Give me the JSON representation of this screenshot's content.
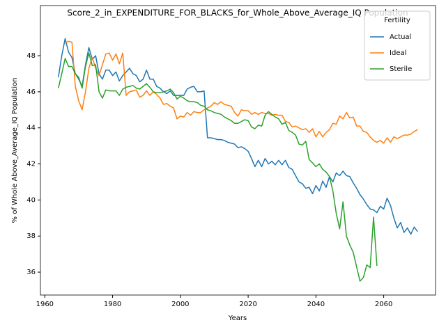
{
  "chart_data": {
    "type": "line",
    "title": "Score_2_in_EXPENDITURE_FOR_BLACKS_for_Whole_Above_Average_IQ Population",
    "xlabel": "Years",
    "ylabel": "% of Whole Above_Average_IQ Population",
    "legend_title": "Fertility",
    "legend": "upper right",
    "grid": false,
    "x": [
      1964,
      1965,
      1966,
      1967,
      1968,
      1969,
      1970,
      1971,
      1972,
      1973,
      1974,
      1975,
      1976,
      1977,
      1978,
      1979,
      1980,
      1981,
      1982,
      1983,
      1984,
      1985,
      1986,
      1987,
      1988,
      1989,
      1990,
      1991,
      1992,
      1993,
      1994,
      1995,
      1996,
      1997,
      1998,
      1999,
      2000,
      2001,
      2002,
      2003,
      2004,
      2005,
      2006,
      2007,
      2008,
      2009,
      2010,
      2011,
      2012,
      2013,
      2014,
      2015,
      2016,
      2017,
      2018,
      2019,
      2020,
      2021,
      2022,
      2023,
      2024,
      2025,
      2026,
      2027,
      2028,
      2029,
      2030,
      2031,
      2032,
      2033,
      2034,
      2035,
      2036,
      2037,
      2038,
      2039,
      2040,
      2041,
      2042,
      2043,
      2044,
      2045,
      2046,
      2047,
      2048,
      2049,
      2050,
      2051,
      2052,
      2053,
      2054,
      2055,
      2056,
      2057,
      2058,
      2059,
      2060,
      2061,
      2062,
      2063,
      2064,
      2065,
      2066,
      2067,
      2068,
      2069,
      2070
    ],
    "series": [
      {
        "name": "Actual",
        "color": "#1f77b4",
        "values": [
          46.8,
          48.0,
          48.95,
          48.2,
          47.9,
          47.0,
          46.7,
          46.3,
          47.5,
          48.45,
          47.8,
          48.0,
          47.0,
          46.7,
          47.2,
          47.2,
          46.9,
          47.1,
          46.6,
          46.9,
          47.1,
          47.3,
          47.0,
          46.9,
          46.55,
          46.7,
          47.2,
          46.7,
          46.7,
          46.3,
          46.2,
          46.0,
          45.9,
          46.05,
          45.8,
          45.8,
          45.8,
          45.8,
          46.15,
          46.25,
          46.3,
          46.0,
          46.0,
          46.05,
          43.45,
          43.45,
          43.4,
          43.35,
          43.35,
          43.3,
          43.2,
          43.15,
          43.1,
          42.9,
          42.95,
          42.85,
          42.7,
          42.3,
          41.85,
          42.2,
          41.85,
          42.3,
          42.0,
          42.15,
          41.95,
          42.2,
          41.95,
          42.2,
          41.8,
          41.7,
          41.35,
          41.0,
          40.9,
          40.65,
          40.7,
          40.35,
          40.8,
          40.5,
          41.05,
          40.7,
          41.3,
          41.0,
          41.5,
          41.35,
          41.6,
          41.35,
          41.3,
          40.95,
          40.65,
          40.3,
          40.05,
          39.75,
          39.5,
          39.45,
          39.3,
          39.65,
          39.5,
          40.1,
          39.7,
          39.0,
          38.45,
          38.75,
          38.2,
          38.45,
          38.1,
          38.5,
          38.25
        ]
      },
      {
        "name": "Ideal",
        "color": "#ff7f0e",
        "values": [
          null,
          null,
          48.7,
          48.8,
          48.75,
          46.3,
          45.5,
          45.0,
          46.0,
          47.3,
          47.9,
          47.3,
          46.9,
          47.5,
          48.1,
          48.15,
          47.75,
          48.1,
          47.55,
          48.15,
          45.8,
          46.0,
          46.05,
          46.1,
          45.7,
          45.8,
          46.05,
          45.8,
          46.0,
          45.85,
          45.65,
          45.3,
          45.35,
          45.2,
          45.1,
          44.5,
          44.65,
          44.6,
          44.85,
          44.7,
          44.9,
          44.85,
          44.85,
          45.0,
          45.1,
          45.2,
          45.4,
          45.3,
          45.45,
          45.3,
          45.25,
          45.2,
          44.85,
          44.65,
          45.0,
          44.95,
          44.95,
          44.75,
          44.85,
          44.75,
          44.85,
          44.8,
          44.8,
          44.7,
          44.75,
          44.7,
          44.7,
          44.35,
          44.3,
          44.05,
          44.1,
          44.0,
          43.9,
          43.95,
          43.75,
          43.95,
          43.5,
          43.8,
          43.5,
          43.75,
          43.9,
          44.25,
          44.2,
          44.65,
          44.5,
          44.85,
          44.55,
          44.6,
          44.1,
          44.1,
          43.8,
          43.75,
          43.5,
          43.3,
          43.2,
          43.3,
          43.15,
          43.45,
          43.2,
          43.5,
          43.4,
          43.5,
          43.6,
          43.6,
          43.65,
          43.8,
          43.9
        ]
      },
      {
        "name": "Sterile",
        "color": "#2ca02c",
        "values": [
          46.2,
          47.0,
          47.85,
          47.4,
          47.4,
          47.0,
          46.8,
          46.2,
          47.4,
          48.15,
          47.45,
          47.5,
          46.0,
          45.65,
          46.1,
          46.05,
          46.05,
          46.05,
          45.8,
          46.15,
          46.25,
          46.3,
          46.35,
          46.2,
          46.15,
          46.3,
          46.45,
          46.25,
          46.0,
          45.95,
          45.95,
          46.0,
          46.05,
          46.15,
          45.95,
          45.6,
          45.75,
          45.65,
          45.5,
          45.45,
          45.45,
          45.4,
          45.25,
          45.2,
          45.0,
          44.95,
          44.85,
          44.8,
          44.75,
          44.6,
          44.5,
          44.4,
          44.25,
          44.25,
          44.35,
          44.45,
          44.4,
          44.05,
          43.95,
          44.15,
          44.1,
          44.7,
          44.9,
          44.75,
          44.6,
          44.5,
          44.2,
          44.3,
          43.85,
          43.75,
          43.6,
          43.1,
          43.05,
          43.25,
          42.25,
          42.05,
          41.85,
          42.0,
          41.7,
          41.55,
          41.3,
          40.5,
          39.25,
          38.4,
          39.9,
          38.0,
          37.5,
          37.1,
          36.3,
          35.5,
          35.7,
          36.4,
          36.25,
          39.05,
          36.35,
          null,
          null,
          null,
          null,
          null,
          null,
          null,
          null,
          null,
          null,
          null,
          null
        ]
      }
    ],
    "xlim": [
      1958.7,
      2075.3
    ],
    "ylim": [
      34.73,
      50.78
    ],
    "xticks": [
      1960,
      1980,
      2000,
      2020,
      2040,
      2060
    ],
    "yticks": [
      36,
      38,
      40,
      42,
      44,
      46,
      48
    ]
  }
}
